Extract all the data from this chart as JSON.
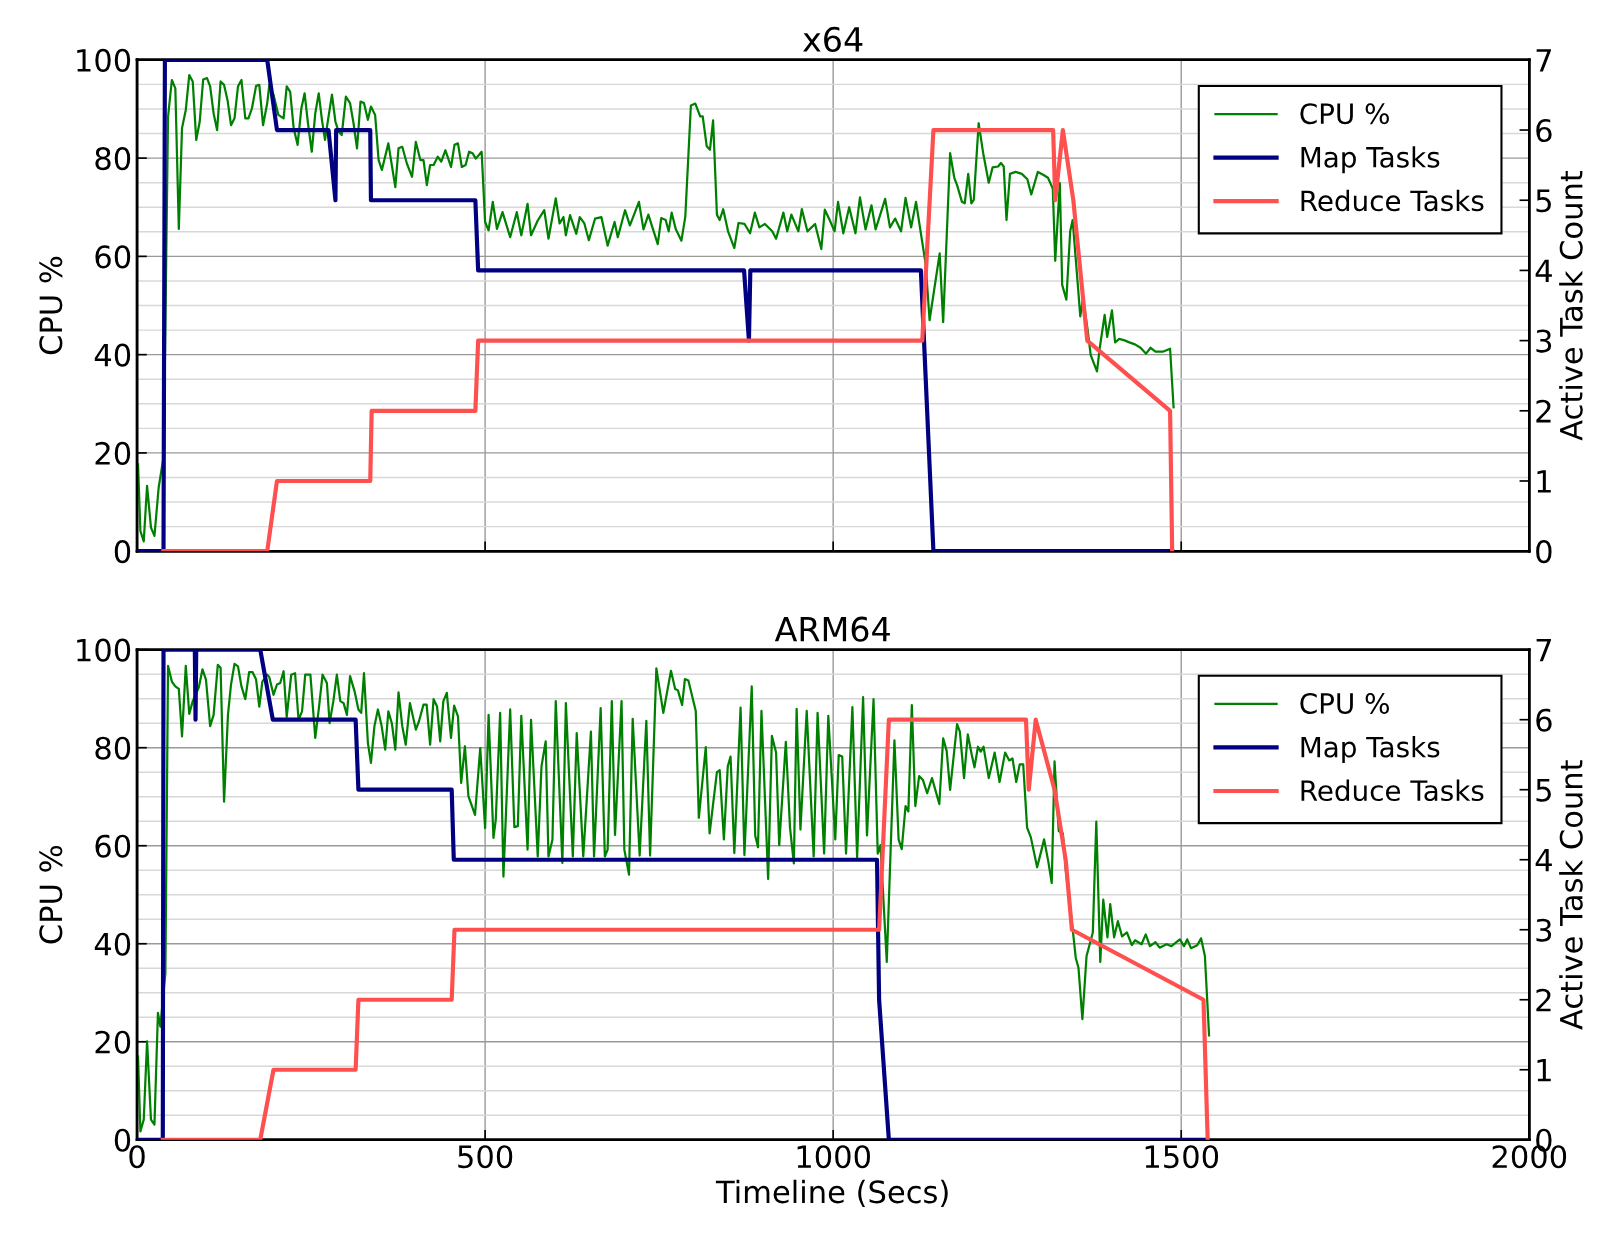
{
  "chart_data": [
    {
      "type": "line",
      "title": "x64",
      "ylabel": "CPU %",
      "y2label": "Active Task Count",
      "xlim": [
        0,
        2000
      ],
      "xticks": [
        0,
        500,
        1000,
        1500,
        2000
      ],
      "ylim": [
        0,
        100
      ],
      "yticks": [
        0,
        20,
        40,
        60,
        80,
        100
      ],
      "y2lim": [
        0,
        7
      ],
      "y2ticks": [
        0,
        1,
        2,
        3,
        4,
        5,
        6,
        7
      ],
      "grid": true,
      "legend": "top right",
      "tick_labels": "y",
      "series": [
        {
          "name": "CPU %",
          "color": "#008000",
          "x": [
            1.4,
            4.8,
            9.6,
            14.4,
            20,
            25,
            31,
            38.3,
            44.5,
            50,
            55,
            60,
            64.6,
            70,
            75,
            80,
            85,
            90,
            95,
            100.5,
            105,
            110,
            115,
            120,
            125,
            130,
            135,
            140,
            145,
            150,
            155.5,
            160,
            165,
            171,
            175.6,
            181,
            187,
            190,
            196,
            203,
            210.5,
            215,
            220,
            225,
            230.6,
            236,
            240.7,
            245.5,
            251,
            256,
            261,
            265.6,
            270,
            275,
            280,
            285,
            289.5,
            294,
            300,
            306,
            311,
            316,
            321,
            326,
            331.6,
            336,
            342,
            347,
            351.7,
            361,
            371,
            375.6,
            381,
            387.6,
            395,
            400.5,
            407,
            411.5,
            416.3,
            421,
            426,
            432,
            437,
            443,
            451,
            456,
            461,
            466.5,
            472,
            477,
            482,
            486.6,
            495,
            500,
            505,
            511,
            517,
            525,
            536,
            545.5,
            552,
            561,
            566,
            575.6,
            585,
            591,
            601.5,
            607,
            612.5,
            616,
            622,
            631,
            636,
            642.6,
            649,
            658,
            667,
            676,
            686,
            690.6,
            701,
            708,
            721,
            727.5,
            734.5,
            748,
            753,
            759.4,
            763.7,
            768,
            774,
            782,
            787.6,
            795.6,
            802,
            809,
            812.6,
            818.4,
            823,
            827.5,
            833,
            837,
            842,
            849,
            858,
            864,
            872.7,
            880.6,
            887.5,
            894,
            902,
            912.5,
            918,
            928.5,
            934,
            940,
            950,
            955,
            963,
            974,
            983,
            988,
            995,
            1002,
            1007,
            1014.6,
            1023,
            1032,
            1038.5,
            1046.5,
            1055,
            1061,
            1074.7,
            1081.6,
            1089,
            1097.5,
            1104,
            1112,
            1119,
            1133,
            1138.5,
            1145,
            1153,
            1158,
            1168,
            1174,
            1178,
            1185,
            1189,
            1194,
            1198.5,
            1202,
            1209,
            1215.5,
            1223.5,
            1229,
            1237,
            1241,
            1245,
            1249,
            1254,
            1262,
            1271,
            1279,
            1284.6,
            1294,
            1301.6,
            1308.6,
            1315.5,
            1319,
            1325.6,
            1329,
            1335,
            1340.5,
            1344,
            1351,
            1355,
            1359,
            1365.5,
            1370,
            1379,
            1383,
            1390,
            1393.6,
            1400.5,
            1405,
            1411,
            1418.6,
            1425.5,
            1433.5,
            1441.5,
            1449.5,
            1456,
            1463,
            1473.5,
            1484,
            1489
          ],
          "values": [
            17.7,
            4.1,
            2.0,
            13.3,
            4.8,
            3.1,
            12.9,
            19.4,
            88.4,
            95.9,
            94.2,
            65.6,
            86.1,
            89.8,
            96.9,
            95.6,
            83.7,
            87.4,
            96,
            96.3,
            94.6,
            89.1,
            85.7,
            95.6,
            94.9,
            91.8,
            86.7,
            88.1,
            94.6,
            95.9,
            88.1,
            88.1,
            90.1,
            94.7,
            94.9,
            86.7,
            91.2,
            94.9,
            92.9,
            88.8,
            88.1,
            94.6,
            93.5,
            86.1,
            82.7,
            90.1,
            93.2,
            87.1,
            81.3,
            89.1,
            93.2,
            87.8,
            83.7,
            88.4,
            92.9,
            87.4,
            85.4,
            84.7,
            92.5,
            91.2,
            87.1,
            82,
            91.5,
            91.2,
            87.8,
            90.5,
            88.8,
            79.6,
            77.6,
            83,
            74.1,
            82,
            82.3,
            78.9,
            76.2,
            83.3,
            79.6,
            79.6,
            74.5,
            78.6,
            78.6,
            80.3,
            79.3,
            81.6,
            78.2,
            82.7,
            83,
            78.2,
            78.6,
            81.3,
            81,
            79.9,
            81.3,
            67,
            65.3,
            71.1,
            65.6,
            69,
            63.9,
            69,
            64.3,
            70.7,
            64.3,
            67.3,
            69.4,
            63.6,
            71.8,
            66.7,
            68,
            64.3,
            68.4,
            64.6,
            68,
            66.7,
            63.3,
            67.7,
            68,
            62.2,
            67,
            63.9,
            69.4,
            66.3,
            71.1,
            65.5,
            68.5,
            62.5,
            67.8,
            67.4,
            65.1,
            68.9,
            65.5,
            63.2,
            68.1,
            90.7,
            91.1,
            88.5,
            88.5,
            82.4,
            81.7,
            87.7,
            68.5,
            67.4,
            69.6,
            65.1,
            61.7,
            66.8,
            66.6,
            64.7,
            68.9,
            65.9,
            66.6,
            65.1,
            63.6,
            68.9,
            65.1,
            68.5,
            65.1,
            69.6,
            65.1,
            66.6,
            61.5,
            69.5,
            67.4,
            65.1,
            71.1,
            64.7,
            70,
            64.7,
            72.0,
            65.5,
            70.4,
            65.5,
            71.7,
            65.9,
            67.7,
            65.1,
            71.9,
            65.9,
            71.1,
            58.3,
            47.0,
            53.1,
            60.6,
            46.6,
            81,
            76,
            74.5,
            71.1,
            70.8,
            76.8,
            70.8,
            71.5,
            87.1,
            81,
            75,
            78.1,
            78.3,
            79,
            78.3,
            67.4,
            76.8,
            77.2,
            76.8,
            75.7,
            72.6,
            77.2,
            76.6,
            76.0,
            73.8,
            59.1,
            74.9,
            54.2,
            51.2,
            65.1,
            67.4,
            55,
            47.8,
            51.5,
            45.1,
            39.9,
            36.6,
            41.4,
            48.1,
            43.6,
            49,
            42.5,
            43.2,
            42.9,
            42.5,
            42.1,
            41.4,
            40.2,
            41.4,
            40.6,
            40.6,
            41.2,
            29.3
          ]
        },
        {
          "name": "Map Tasks",
          "color": "#000080",
          "axis": "y2",
          "x": [
            0,
            38,
            40,
            187,
            201,
            275,
            285,
            286,
            335,
            336,
            486,
            490,
            872,
            879,
            881,
            1126,
            1135,
            1144,
            1487
          ],
          "values": [
            0,
            0,
            7,
            7,
            6,
            6,
            5,
            6,
            6,
            5,
            5,
            4,
            4,
            3,
            4,
            4,
            2,
            0,
            0
          ]
        },
        {
          "name": "Reduce Tasks",
          "color": "#ff5050",
          "axis": "y2",
          "x": [
            38,
            187,
            201,
            335,
            337,
            486,
            490,
            1128,
            1144,
            1316,
            1319,
            1330,
            1345,
            1365,
            1484,
            1487
          ],
          "values": [
            0,
            0,
            1,
            1,
            2,
            2,
            3,
            3,
            6,
            6,
            5,
            6,
            5,
            3,
            2,
            0
          ]
        }
      ]
    },
    {
      "type": "line",
      "title": "ARM64",
      "xlabel": "Timeline (Secs)",
      "ylabel": "CPU %",
      "y2label": "Active Task Count",
      "xlim": [
        0,
        2000
      ],
      "xticks": [
        0,
        500,
        1000,
        1500,
        2000
      ],
      "ylim": [
        0,
        100
      ],
      "yticks": [
        0,
        20,
        40,
        60,
        80,
        100
      ],
      "y2lim": [
        0,
        7
      ],
      "y2ticks": [
        0,
        1,
        2,
        3,
        4,
        5,
        6,
        7
      ],
      "grid": true,
      "legend": "top right",
      "series": [
        {
          "name": "CPU %",
          "color": "#008000",
          "x": [
            1.4,
            4.8,
            9.6,
            14.4,
            20,
            25,
            30,
            33.5,
            40.7,
            44.5,
            50,
            55,
            60,
            64.6,
            70,
            75,
            80,
            88.5,
            94,
            99,
            105,
            110,
            116,
            120,
            125,
            130.6,
            135,
            140,
            145,
            150,
            155.5,
            161,
            166,
            171,
            175.6,
            180,
            187,
            190,
            196,
            201,
            205.7,
            210.5,
            215,
            221.5,
            227,
            232,
            237,
            241.6,
            249,
            256,
            261,
            266.5,
            272.7,
            276.6,
            282,
            287,
            292,
            296.7,
            301.5,
            306,
            312.5,
            318,
            322,
            326,
            331.6,
            336,
            341,
            346,
            351,
            356.5,
            361,
            366,
            371,
            375.6,
            381,
            386,
            392,
            400.5,
            405,
            411.5,
            416,
            421,
            426,
            431,
            435.5,
            440,
            445,
            451,
            455.5,
            461,
            465.6,
            471,
            476,
            485.5,
            493,
            500,
            505,
            512,
            515.3,
            521.6,
            526.3,
            536,
            542,
            547,
            552,
            561,
            566,
            575.6,
            581,
            587,
            591,
            596.7,
            601.5,
            611,
            616,
            626,
            631.6,
            641,
            652,
            656.5,
            666,
            672,
            676,
            682,
            686.6,
            696,
            700,
            706.7,
            712,
            722,
            731.6,
            737,
            746,
            756,
            767,
            773,
            777,
            783,
            787,
            792,
            802.6,
            807,
            817,
            822.5,
            833,
            837,
            843,
            848.6,
            852.6,
            858,
            867,
            872.5,
            883,
            888,
            892,
            897,
            906.6,
            912,
            918,
            922.5,
            932,
            938,
            943.5,
            947.5,
            953,
            962,
            972,
            977.6,
            987,
            993,
            1003,
            1008,
            1013,
            1018.5,
            1027.6,
            1034.4,
            1043,
            1048.6,
            1058,
            1064,
            1068,
            1077,
            1088,
            1094,
            1098.5,
            1104,
            1108,
            1113,
            1118,
            1123.5,
            1129,
            1135,
            1142,
            1152.5,
            1158,
            1163,
            1168,
            1178,
            1182,
            1188,
            1193.4,
            1199,
            1203,
            1208,
            1212,
            1216,
            1223.5,
            1232,
            1239,
            1247,
            1253,
            1257.6,
            1263,
            1268,
            1273,
            1278.6,
            1284,
            1293,
            1299.6,
            1303,
            1309,
            1314,
            1318,
            1324,
            1330,
            1334,
            1344,
            1348.5,
            1352.4,
            1358,
            1364,
            1373,
            1378,
            1383.7,
            1388,
            1394,
            1398,
            1403.6,
            1409,
            1415,
            1422,
            1429,
            1433.7,
            1443,
            1449,
            1455,
            1463,
            1469,
            1479,
            1486,
            1498,
            1504,
            1508.6,
            1514,
            1523,
            1528.5,
            1534,
            1540
          ],
          "values": [
            17,
            1.7,
            4.1,
            20.1,
            4.1,
            3.1,
            25.9,
            23.1,
            34,
            96.7,
            93.5,
            92.5,
            92,
            82.3,
            96.7,
            86.9,
            89.5,
            92.2,
            96,
            93.9,
            84.4,
            86.7,
            96.9,
            96.3,
            69,
            86.7,
            92.9,
            97.1,
            96.6,
            92.5,
            89.9,
            95.4,
            95.4,
            93.9,
            88.4,
            93.5,
            94.9,
            94.4,
            90.8,
            92.9,
            93.2,
            95.6,
            86.3,
            94.9,
            95.2,
            85.7,
            87.4,
            94.9,
            94.9,
            82,
            87.8,
            94.9,
            93.2,
            85,
            89.5,
            94.9,
            89.5,
            89.1,
            86.7,
            94.6,
            91.5,
            87.8,
            87.1,
            95.2,
            81,
            76.9,
            84.4,
            87.8,
            84.7,
            79.6,
            87.4,
            85,
            79.6,
            91.3,
            84.4,
            80.6,
            89.1,
            83.7,
            85.4,
            88.8,
            88.8,
            80.6,
            89.9,
            88.4,
            81.3,
            89.5,
            91.2,
            82,
            88.6,
            86.4,
            72.8,
            80.3,
            70.1,
            66.3,
            79.9,
            63.6,
            86.7,
            61.6,
            65.3,
            87.1,
            53.7,
            87.8,
            63.8,
            64,
            86.5,
            59.2,
            85.7,
            57.8,
            76.2,
            81.3,
            57.8,
            61.2,
            89.5,
            56.5,
            89.1,
            57.8,
            83,
            57.8,
            83.3,
            57.8,
            88.1,
            57.8,
            59.2,
            89.5,
            62.2,
            89.5,
            59.2,
            54.1,
            85.9,
            58,
            85.5,
            58,
            96.2,
            87.1,
            95.7,
            92,
            91.7,
            88.7,
            94,
            93.7,
            87.5,
            65.7,
            80.1,
            62.5,
            75,
            75.4,
            61.3,
            76.2,
            78.2,
            58.5,
            88.2,
            58.1,
            92.5,
            62.1,
            59.7,
            87.5,
            53.2,
            82.4,
            79,
            60.1,
            81.2,
            63.7,
            56.4,
            87.9,
            63.3,
            87.5,
            57.8,
            87.1,
            58.4,
            86.5,
            61.3,
            78.5,
            78.2,
            58.4,
            88.3,
            57.6,
            90.3,
            62.1,
            89.9,
            58.4,
            60.1,
            36.3,
            81.5,
            61.3,
            59.3,
            68.1,
            67,
            88.7,
            68.1,
            74.2,
            73.4,
            70.7,
            73.8,
            68.5,
            81.9,
            79.4,
            71.4,
            84.8,
            83.3,
            73.8,
            82.7,
            78.6,
            76,
            80.2,
            79.2,
            80.2,
            73.8,
            79.0,
            73,
            79.0,
            77.4,
            77.8,
            73,
            76.6,
            76.6,
            63.7,
            61.7,
            55.6,
            59.3,
            61.3,
            56.8,
            52.4,
            77.2,
            63,
            62.5,
            55.2,
            43.1,
            37.1,
            35.1,
            24.6,
            37.5,
            42.3,
            64.9,
            36.3,
            49,
            41.3,
            48.1,
            41.3,
            44.6,
            41.5,
            42.3,
            39.7,
            40.7,
            39.9,
            41.9,
            39.5,
            40.3,
            39.2,
            39.9,
            39.5,
            40.9,
            39.5,
            40.9,
            39.1,
            39.7,
            41.1,
            37.5,
            21.3
          ]
        },
        {
          "name": "Map Tasks",
          "color": "#000080",
          "axis": "y2",
          "x": [
            0,
            37,
            38,
            83,
            84,
            85,
            177,
            195,
            314,
            318,
            452,
            455,
            1063,
            1066,
            1080,
            1538
          ],
          "values": [
            0,
            0,
            7,
            7,
            6,
            7,
            7,
            6,
            6,
            5,
            5,
            4,
            4,
            2,
            0,
            0
          ]
        },
        {
          "name": "Reduce Tasks",
          "color": "#ff5050",
          "axis": "y2",
          "x": [
            37,
            177,
            196,
            314,
            318,
            452,
            456,
            1066,
            1080,
            1277,
            1281,
            1291,
            1318,
            1334,
            1343,
            1532,
            1538
          ],
          "values": [
            0,
            0,
            1,
            1,
            2,
            2,
            3,
            3,
            6,
            6,
            5,
            6,
            5,
            4,
            3,
            2,
            0
          ]
        }
      ]
    }
  ]
}
